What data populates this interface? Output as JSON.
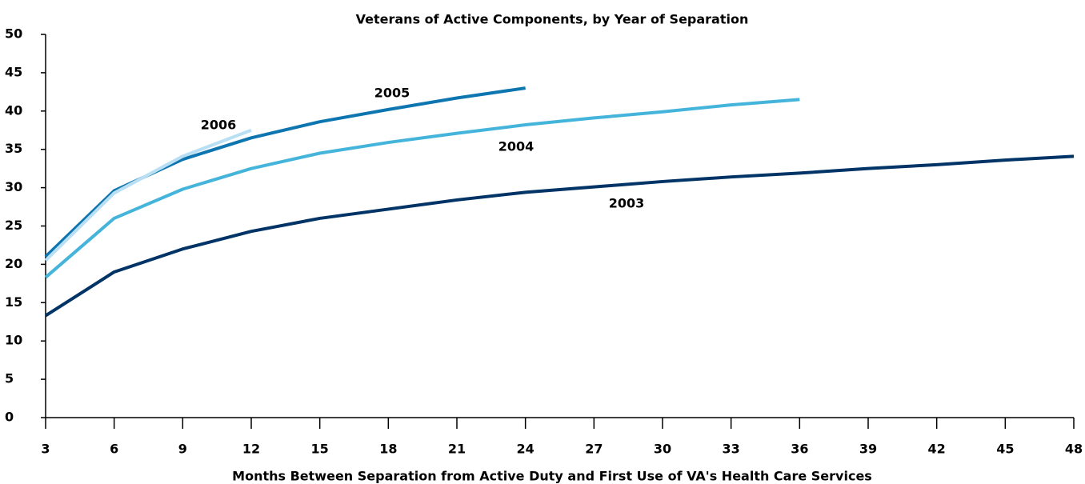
{
  "chart_data": {
    "type": "line",
    "title": "Veterans of Active Components, by Year of Separation",
    "x_label": "Months Between Separation from Active Duty and First Use of VA's Health Care Services",
    "x": [
      3,
      6,
      9,
      12,
      15,
      18,
      21,
      24,
      27,
      30,
      33,
      36,
      39,
      42,
      45,
      48
    ],
    "series": [
      {
        "name": "2003",
        "color": "#003366",
        "values": [
          13.3,
          19,
          22,
          24.3,
          26,
          27.2,
          28.4,
          29.4,
          30.1,
          30.8,
          31.4,
          31.9,
          32.5,
          33,
          33.6,
          34.1
        ]
      },
      {
        "name": "2004",
        "color": "#45b4db",
        "values": [
          18.3,
          26,
          29.8,
          32.5,
          34.5,
          35.9,
          37.1,
          38.2,
          39.1,
          39.9,
          40.8,
          41.5,
          null,
          null,
          null,
          null
        ]
      },
      {
        "name": "2005",
        "color": "#0d75b0",
        "values": [
          21,
          29.6,
          33.7,
          36.5,
          38.6,
          40.2,
          41.7,
          43,
          null,
          null,
          null,
          null,
          null,
          null,
          null,
          null
        ]
      },
      {
        "name": "2006",
        "color": "#b8dff3",
        "values": [
          20.5,
          29.3,
          34.1,
          37.5,
          null,
          null,
          null,
          null,
          null,
          null,
          null,
          null,
          null,
          null,
          null,
          null
        ]
      }
    ],
    "xlim": [
      3,
      48
    ],
    "xticks": [
      3,
      6,
      9,
      12,
      15,
      18,
      21,
      24,
      27,
      30,
      33,
      36,
      39,
      42,
      45,
      48
    ],
    "ylim": [
      0,
      50
    ],
    "yticks": [
      0,
      5,
      10,
      15,
      20,
      25,
      30,
      35,
      40,
      45,
      50
    ]
  }
}
